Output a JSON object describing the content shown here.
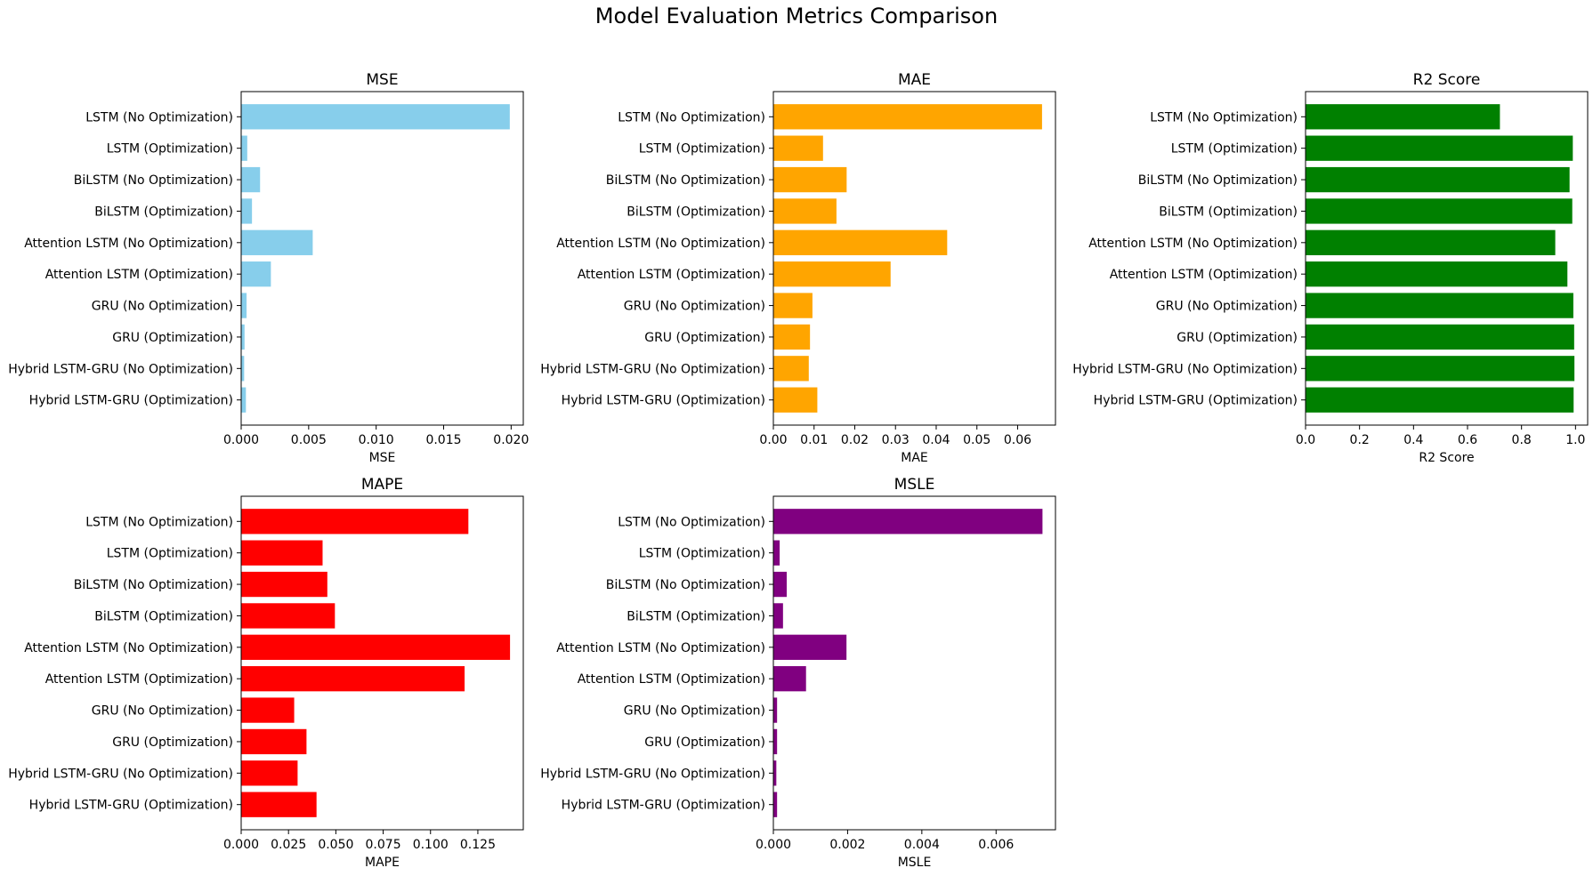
{
  "figure_title": "Model Evaluation Metrics Comparison",
  "chart_data": [
    {
      "type": "bar",
      "orientation": "horizontal",
      "title": "MSE",
      "xlabel": "MSE",
      "ylabel": "",
      "color": "#87CEEB",
      "xlim": [
        0,
        0.0209
      ],
      "xticks": [
        0.0,
        0.005,
        0.01,
        0.015,
        0.02
      ],
      "xtick_labels": [
        "0.000",
        "0.005",
        "0.010",
        "0.015",
        "0.020"
      ],
      "categories": [
        "LSTM (No Optimization)",
        "LSTM (Optimization)",
        "BiLSTM (No Optimization)",
        "BiLSTM (Optimization)",
        "Attention LSTM (No Optimization)",
        "Attention LSTM (Optimization)",
        "GRU (No Optimization)",
        "GRU (Optimization)",
        "Hybrid LSTM-GRU (No Optimization)",
        "Hybrid LSTM-GRU (Optimization)"
      ],
      "values": [
        0.0199,
        0.00045,
        0.0014,
        0.0008,
        0.0053,
        0.0022,
        0.0004,
        0.00025,
        0.00022,
        0.00035
      ]
    },
    {
      "type": "bar",
      "orientation": "horizontal",
      "title": "MAE",
      "xlabel": "MAE",
      "ylabel": "",
      "color": "#FFA500",
      "xlim": [
        0,
        0.0693
      ],
      "xticks": [
        0.0,
        0.01,
        0.02,
        0.03,
        0.04,
        0.05,
        0.06
      ],
      "xtick_labels": [
        "0.00",
        "0.01",
        "0.02",
        "0.03",
        "0.04",
        "0.05",
        "0.06"
      ],
      "categories": [
        "LSTM (No Optimization)",
        "LSTM (Optimization)",
        "BiLSTM (No Optimization)",
        "BiLSTM (Optimization)",
        "Attention LSTM (No Optimization)",
        "Attention LSTM (Optimization)",
        "GRU (No Optimization)",
        "GRU (Optimization)",
        "Hybrid LSTM-GRU (No Optimization)",
        "Hybrid LSTM-GRU (Optimization)"
      ],
      "values": [
        0.066,
        0.0122,
        0.018,
        0.0155,
        0.0427,
        0.0288,
        0.0096,
        0.009,
        0.0087,
        0.0108
      ]
    },
    {
      "type": "bar",
      "orientation": "horizontal",
      "title": "R2 Score",
      "xlabel": "R2 Score",
      "ylabel": "",
      "color": "#008000",
      "xlim": [
        0,
        1.045
      ],
      "xticks": [
        0.0,
        0.2,
        0.4,
        0.6,
        0.8,
        1.0
      ],
      "xtick_labels": [
        "0.0",
        "0.2",
        "0.4",
        "0.6",
        "0.8",
        "1.0"
      ],
      "categories": [
        "LSTM (No Optimization)",
        "LSTM (Optimization)",
        "BiLSTM (No Optimization)",
        "BiLSTM (Optimization)",
        "Attention LSTM (No Optimization)",
        "Attention LSTM (Optimization)",
        "GRU (No Optimization)",
        "GRU (Optimization)",
        "Hybrid LSTM-GRU (No Optimization)",
        "Hybrid LSTM-GRU (Optimization)"
      ],
      "values": [
        0.72,
        0.99,
        0.978,
        0.988,
        0.925,
        0.97,
        0.992,
        0.995,
        0.996,
        0.993
      ]
    },
    {
      "type": "bar",
      "orientation": "horizontal",
      "title": "MAPE",
      "xlabel": "MAPE",
      "ylabel": "",
      "color": "#FF0000",
      "xlim": [
        0,
        0.149
      ],
      "xticks": [
        0.0,
        0.025,
        0.05,
        0.075,
        0.1,
        0.125
      ],
      "xtick_labels": [
        "0.000",
        "0.025",
        "0.050",
        "0.075",
        "0.100",
        "0.125"
      ],
      "categories": [
        "LSTM (No Optimization)",
        "LSTM (Optimization)",
        "BiLSTM (No Optimization)",
        "BiLSTM (Optimization)",
        "Attention LSTM (No Optimization)",
        "Attention LSTM (Optimization)",
        "GRU (No Optimization)",
        "GRU (Optimization)",
        "Hybrid LSTM-GRU (No Optimization)",
        "Hybrid LSTM-GRU (Optimization)"
      ],
      "values": [
        0.12,
        0.043,
        0.0455,
        0.0495,
        0.142,
        0.118,
        0.028,
        0.0345,
        0.0298,
        0.0398
      ]
    },
    {
      "type": "bar",
      "orientation": "horizontal",
      "title": "MSLE",
      "xlabel": "MSLE",
      "ylabel": "",
      "color": "#800080",
      "xlim": [
        0,
        0.0076
      ],
      "xticks": [
        0.0,
        0.002,
        0.004,
        0.006
      ],
      "xtick_labels": [
        "0.000",
        "0.002",
        "0.004",
        "0.006"
      ],
      "categories": [
        "LSTM (No Optimization)",
        "LSTM (Optimization)",
        "BiLSTM (No Optimization)",
        "BiLSTM (Optimization)",
        "Attention LSTM (No Optimization)",
        "Attention LSTM (Optimization)",
        "GRU (No Optimization)",
        "GRU (Optimization)",
        "Hybrid LSTM-GRU (No Optimization)",
        "Hybrid LSTM-GRU (Optimization)"
      ],
      "values": [
        0.00725,
        0.00017,
        0.00036,
        0.00026,
        0.00197,
        0.00088,
        0.0001,
        0.0001,
        8e-05,
        0.0001
      ]
    }
  ]
}
